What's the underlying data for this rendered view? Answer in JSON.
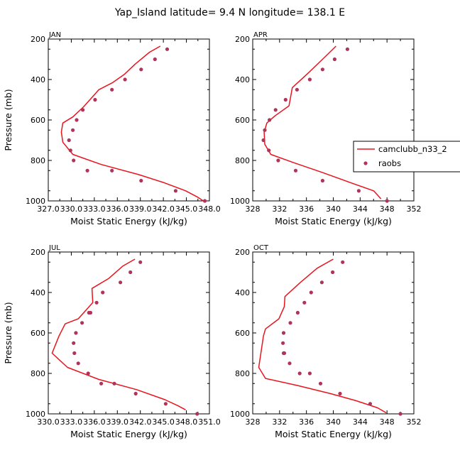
{
  "page_title": "Yap_Island  latitude= 9.4 N longitude= 138.1 E",
  "colors": {
    "model_line": "#e8141e",
    "obs_marker": "#b0345a",
    "frame": "#000000"
  },
  "legend": {
    "entries": [
      "camclubb_n33_2",
      "raobs"
    ],
    "placement": "right of APR panel"
  },
  "chart_data": [
    {
      "type": "line",
      "panel": "JAN",
      "title": "JAN",
      "xlabel": "Moist Static Energy (kJ/kg)",
      "ylabel": "Pressure (mb)",
      "xlim": [
        327.0,
        348.0
      ],
      "ylim": [
        1000,
        200
      ],
      "x_tick_values": [
        327.0,
        330.0,
        333.0,
        336.0,
        339.0,
        342.0,
        345.0,
        348.0
      ],
      "x_tick_labels": [
        "327.0",
        "330.0",
        "333.0",
        "336.0",
        "339.0",
        "342.0",
        "345.0",
        "348.0"
      ],
      "y_tick_values": [
        200,
        400,
        600,
        800,
        1000
      ],
      "y_tick_labels": [
        "200",
        "400",
        "600",
        "800",
        "1000"
      ],
      "series": [
        {
          "name": "camclubb_n33_2",
          "style": "line",
          "x": [
            341.6,
            340.2,
            338.3,
            336.9,
            335.4,
            333.6,
            331.6,
            330.2,
            328.9,
            328.7,
            328.9,
            330.2,
            333.9,
            338.8,
            342.1,
            344.9,
            346.4,
            347.2
          ],
          "y": [
            235,
            265,
            325,
            375,
            415,
            450,
            535,
            585,
            615,
            660,
            710,
            770,
            820,
            870,
            910,
            950,
            980,
            1000
          ]
        },
        {
          "name": "raobs",
          "style": "markers",
          "x": [
            342.5,
            340.9,
            339.1,
            337.0,
            335.3,
            333.1,
            331.5,
            330.7,
            330.2,
            329.7,
            329.9,
            330.3,
            332.1,
            335.3,
            339.1,
            343.6,
            347.4
          ],
          "y": [
            250,
            300,
            350,
            400,
            450,
            500,
            550,
            600,
            650,
            700,
            750,
            800,
            850,
            850,
            900,
            950,
            1000
          ]
        }
      ]
    },
    {
      "type": "line",
      "panel": "APR",
      "title": "APR",
      "xlabel": "Moist Static Energy (kJ/kg)",
      "ylabel": "",
      "xlim": [
        328,
        352
      ],
      "ylim": [
        1000,
        200
      ],
      "x_tick_values": [
        328,
        332,
        336,
        340,
        344,
        348,
        352
      ],
      "x_tick_labels": [
        "328",
        "332",
        "336",
        "340",
        "344",
        "348",
        "352"
      ],
      "y_tick_values": [
        200,
        400,
        600,
        800,
        1000
      ],
      "y_tick_labels": [
        "200",
        "400",
        "600",
        "800",
        "1000"
      ],
      "series": [
        {
          "name": "camclubb_n33_2",
          "style": "line",
          "x": [
            340.4,
            338.4,
            336.2,
            333.9,
            333.4,
            331.3,
            330.1,
            329.7,
            329.8,
            330.7,
            334.0,
            338.4,
            342.6,
            346.0,
            347.1
          ],
          "y": [
            235,
            300,
            370,
            440,
            530,
            580,
            615,
            660,
            720,
            770,
            810,
            860,
            910,
            950,
            990
          ]
        },
        {
          "name": "raobs",
          "style": "markers",
          "x": [
            342.1,
            340.2,
            338.4,
            336.5,
            334.6,
            332.9,
            331.4,
            330.5,
            329.8,
            329.6,
            330.4,
            331.8,
            334.4,
            338.4,
            343.8,
            348.0
          ],
          "y": [
            250,
            300,
            350,
            400,
            450,
            500,
            550,
            600,
            650,
            700,
            750,
            800,
            850,
            900,
            950,
            1000
          ]
        }
      ]
    },
    {
      "type": "line",
      "panel": "JUL",
      "title": "JUL",
      "xlabel": "Moist Static Energy (kJ/kg)",
      "ylabel": "Pressure (mb)",
      "xlim": [
        330.0,
        351.0
      ],
      "ylim": [
        1000,
        200
      ],
      "x_tick_values": [
        330.0,
        333.0,
        336.0,
        339.0,
        342.0,
        345.0,
        348.0,
        351.0
      ],
      "x_tick_labels": [
        "330.0",
        "333.0",
        "336.0",
        "339.0",
        "342.0",
        "345.0",
        "348.0",
        "351.0"
      ],
      "y_tick_values": [
        200,
        400,
        600,
        800,
        1000
      ],
      "y_tick_labels": [
        "200",
        "400",
        "600",
        "800",
        "1000"
      ],
      "series": [
        {
          "name": "camclubb_n33_2",
          "style": "line",
          "x": [
            341.3,
            339.7,
            337.9,
            335.7,
            335.8,
            333.9,
            332.2,
            331.4,
            330.5,
            332.5,
            336.6,
            341.5,
            345.2,
            346.9,
            347.9
          ],
          "y": [
            235,
            270,
            330,
            380,
            450,
            530,
            555,
            615,
            700,
            770,
            830,
            880,
            930,
            960,
            980
          ]
        },
        {
          "name": "raobs",
          "style": "markers",
          "x": [
            342.0,
            340.7,
            339.4,
            337.1,
            336.3,
            335.5,
            335.3,
            334.4,
            333.6,
            333.3,
            333.4,
            333.9,
            335.2,
            336.9,
            338.6,
            341.4,
            345.3,
            349.4
          ],
          "y": [
            250,
            300,
            350,
            400,
            450,
            500,
            500,
            550,
            600,
            650,
            700,
            750,
            800,
            850,
            850,
            900,
            950,
            1000
          ]
        }
      ]
    },
    {
      "type": "line",
      "panel": "OCT",
      "title": "OCT",
      "xlabel": "Moist Static Energy (kJ/kg)",
      "ylabel": "",
      "xlim": [
        328,
        352
      ],
      "ylim": [
        1000,
        200
      ],
      "x_tick_values": [
        328,
        332,
        336,
        340,
        344,
        348,
        352
      ],
      "x_tick_labels": [
        "328",
        "332",
        "336",
        "340",
        "344",
        "348",
        "352"
      ],
      "y_tick_values": [
        200,
        400,
        600,
        800,
        1000
      ],
      "y_tick_labels": [
        "200",
        "400",
        "600",
        "800",
        "1000"
      ],
      "series": [
        {
          "name": "camclubb_n33_2",
          "style": "line",
          "x": [
            340.0,
            337.6,
            335.1,
            332.8,
            332.7,
            331.9,
            329.9,
            329.6,
            328.9,
            329.9,
            334.7,
            339.6,
            343.4,
            346.6,
            347.9
          ],
          "y": [
            235,
            280,
            350,
            420,
            470,
            530,
            580,
            615,
            770,
            825,
            860,
            900,
            935,
            970,
            995
          ]
        },
        {
          "name": "raobs",
          "style": "markers",
          "x": [
            341.4,
            339.9,
            338.3,
            336.7,
            335.7,
            334.7,
            333.6,
            332.6,
            332.5,
            332.6,
            332.7,
            333.5,
            335.0,
            336.5,
            338.1,
            341.0,
            345.5,
            350.0
          ],
          "y": [
            250,
            300,
            350,
            400,
            450,
            500,
            550,
            600,
            650,
            700,
            700,
            750,
            800,
            800,
            850,
            900,
            950,
            1000
          ]
        }
      ]
    }
  ]
}
